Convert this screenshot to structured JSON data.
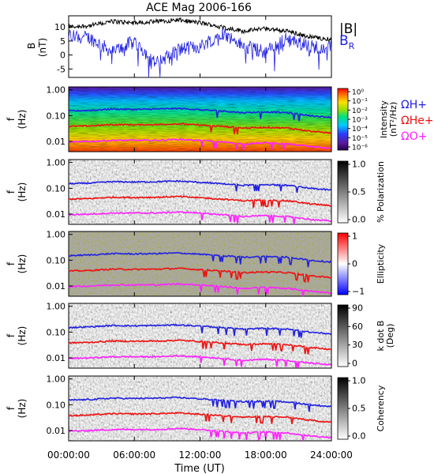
{
  "title": "ACE Mag 2006-166",
  "colors": {
    "black": "#000000",
    "blue": "#2020e0",
    "red": "#ee1010",
    "magenta": "#ff20ff"
  },
  "x_axis": {
    "label": "Time (UT)",
    "ticks": [
      "00:00:00",
      "06:00:00",
      "12:00:00",
      "18:00:00",
      "24:00:00"
    ],
    "range_hours": [
      0,
      24
    ]
  },
  "panels": {
    "p1": {
      "ylabel_top": "B",
      "ylabel_bottom": "(nT)",
      "yticks": [
        "10",
        "5",
        "0",
        "-5"
      ],
      "ylim": [
        -8,
        14
      ],
      "legend_b": "|B|",
      "legend_br_main": "B",
      "legend_br_sub": "R"
    },
    "p2": {
      "ylabel_top": "f",
      "ylabel_bottom": "(Hz)",
      "yticks": [
        "1.00",
        "0.10",
        "0.01"
      ],
      "colorbar_label_1": "Intensity",
      "colorbar_label_2": "(nT²/Hz)",
      "colorbar_ticks": [
        "10⁰",
        "10⁻¹",
        "10⁻²",
        "10⁻³",
        "10⁻⁴",
        "10⁻⁵",
        "10⁻⁶"
      ],
      "omega_h": "ΩH+",
      "omega_he": "ΩHe+",
      "omega_o": "ΩO+"
    },
    "p3": {
      "ylabel_top": "f",
      "ylabel_bottom": "(Hz)",
      "yticks": [
        "1.00",
        "0.10",
        "0.01"
      ],
      "colorbar_label": "% Polarization",
      "colorbar_ticks": [
        "1.0",
        "0.5",
        "0.0"
      ]
    },
    "p4": {
      "ylabel_top": "f",
      "ylabel_bottom": "(Hz)",
      "yticks": [
        "1.00",
        "0.10",
        "0.01"
      ],
      "colorbar_label": "Ellipticity",
      "colorbar_ticks": [
        "1",
        "0",
        "−1"
      ]
    },
    "p5": {
      "ylabel_top": "f",
      "ylabel_bottom": "(Hz)",
      "yticks": [
        "1.00",
        "0.10",
        "0.01"
      ],
      "colorbar_label_1": "k dot B",
      "colorbar_label_2": "(Deg)",
      "colorbar_ticks": [
        "90",
        "60",
        "30",
        "0"
      ]
    },
    "p6": {
      "ylabel_top": "f",
      "ylabel_bottom": "(Hz)",
      "yticks": [
        "1.00",
        "0.10",
        "0.01"
      ],
      "colorbar_label": "Coherency",
      "colorbar_ticks": [
        "1.0",
        "0.5",
        "0.0"
      ]
    }
  },
  "chart_data": {
    "type": "line",
    "title": "ACE Mag 2006-166",
    "xlabel": "Time (UT)",
    "xlim": [
      0,
      24
    ],
    "panel_b": {
      "ylabel": "B (nT)",
      "ylim": [
        -8,
        14
      ],
      "x": [
        0,
        2,
        4,
        6,
        8,
        10,
        12,
        14,
        16,
        18,
        20,
        22,
        24
      ],
      "series": [
        {
          "name": "|B|",
          "values": [
            10,
            10.5,
            12,
            11.5,
            12,
            12.5,
            11.5,
            10,
            8.5,
            9.5,
            8.5,
            6.5,
            5.5
          ]
        },
        {
          "name": "B_R",
          "values": [
            7,
            6,
            1,
            5,
            -3,
            2,
            3,
            8,
            3,
            1,
            6,
            3,
            3
          ]
        }
      ]
    },
    "gyrofrequency_hz": {
      "x": [
        0,
        2,
        4,
        6,
        8,
        10,
        12,
        14,
        16,
        18,
        20,
        22,
        24
      ],
      "series": [
        {
          "name": "ΩH+",
          "values": [
            0.15,
            0.16,
            0.18,
            0.175,
            0.18,
            0.19,
            0.17,
            0.15,
            0.13,
            0.14,
            0.13,
            0.1,
            0.085
          ]
        },
        {
          "name": "ΩHe+",
          "values": [
            0.038,
            0.04,
            0.045,
            0.044,
            0.045,
            0.048,
            0.043,
            0.038,
            0.033,
            0.035,
            0.033,
            0.025,
            0.021
          ]
        },
        {
          "name": "ΩO+",
          "values": [
            0.0095,
            0.01,
            0.011,
            0.011,
            0.011,
            0.012,
            0.011,
            0.0095,
            0.008,
            0.0088,
            0.008,
            0.0063,
            0.0053
          ]
        }
      ]
    },
    "frequency_axis": {
      "scale": "log",
      "ylim_hz": [
        0.004,
        1.3
      ]
    }
  }
}
